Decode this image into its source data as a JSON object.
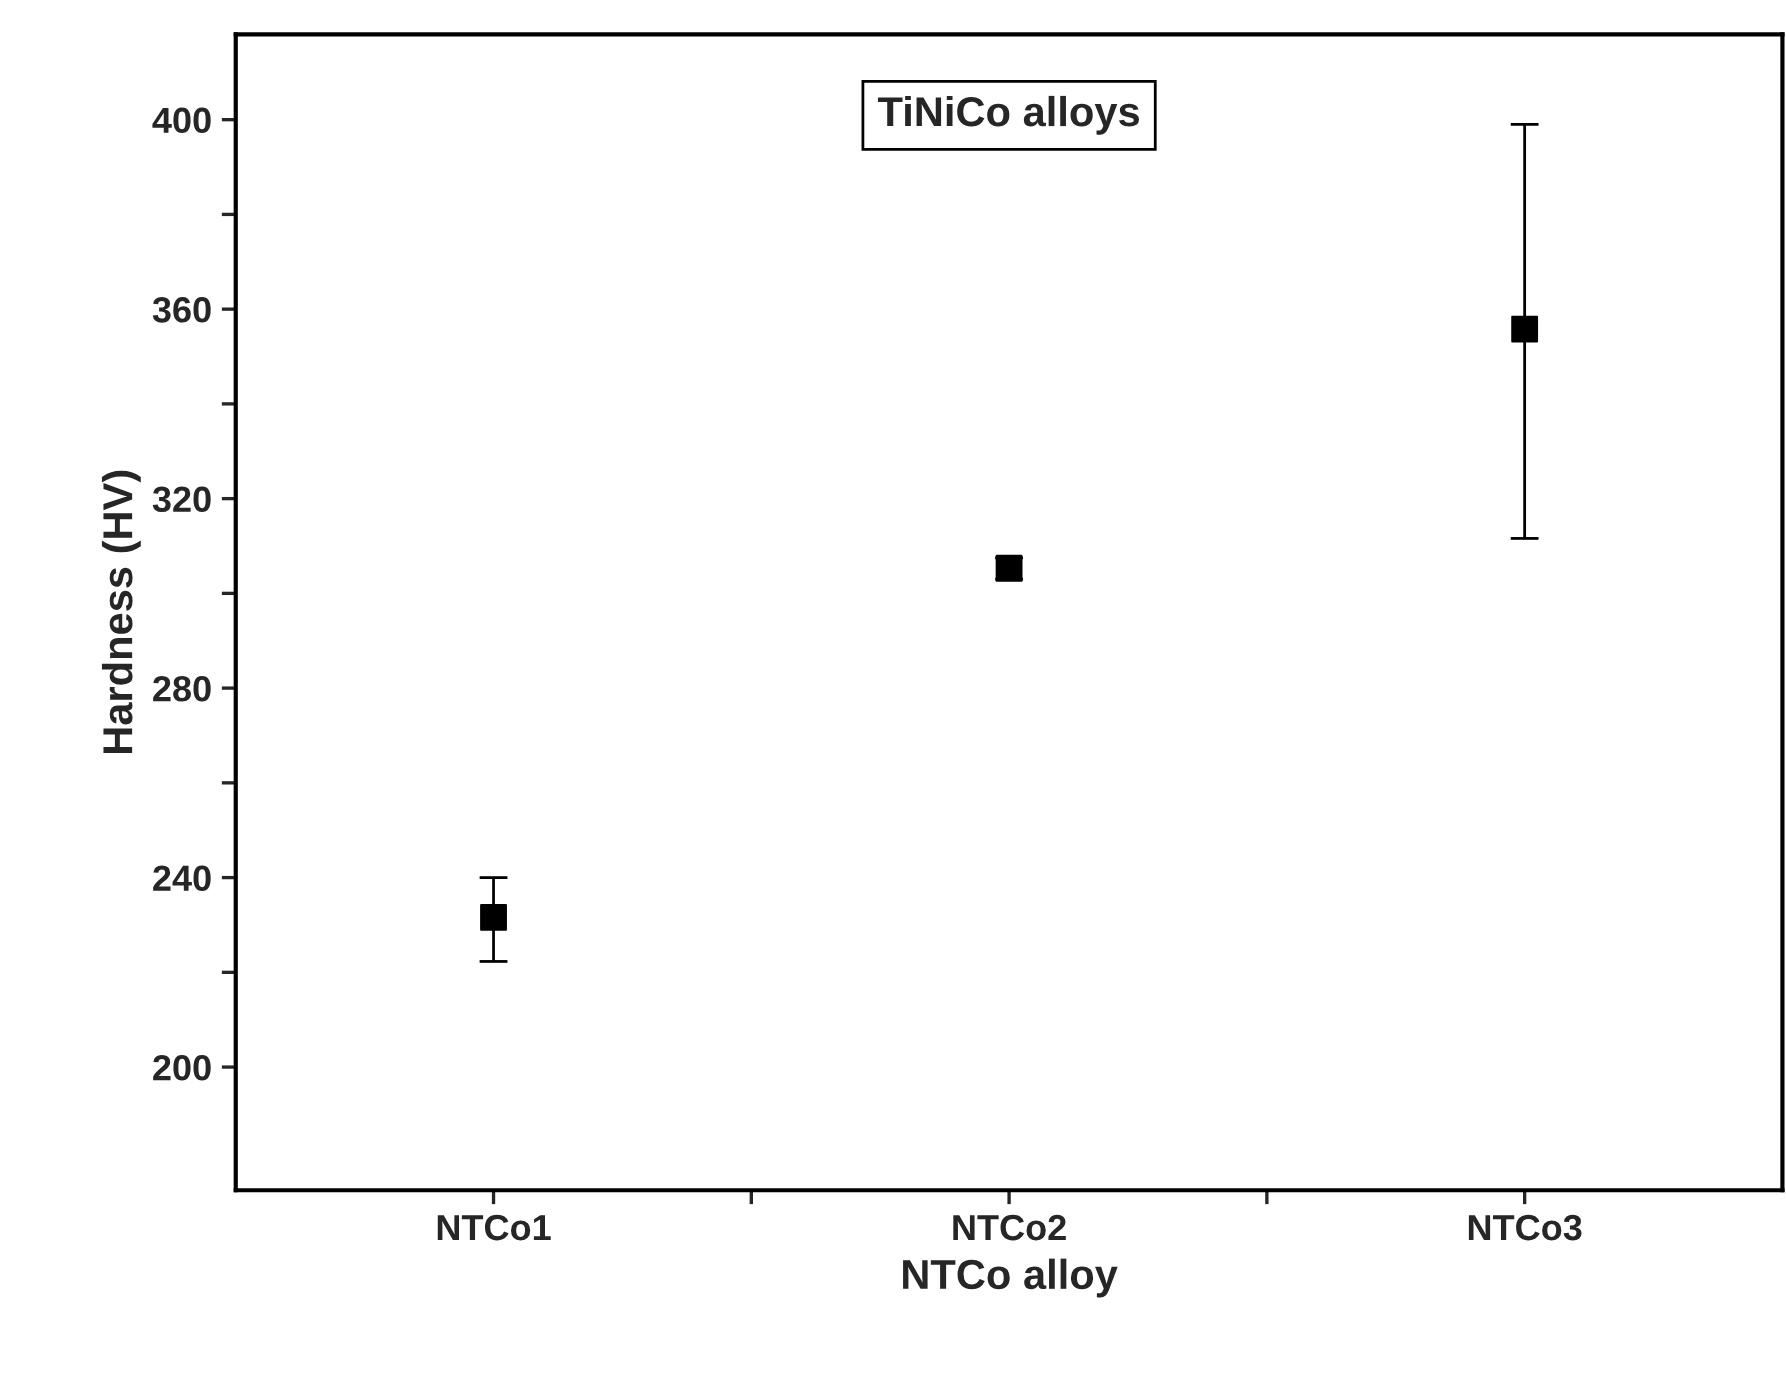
{
  "chart_data": {
    "type": "scatter",
    "xlabel": "NTCo alloy",
    "ylabel": "Hardness (HV)",
    "categories": [
      "NTCo1",
      "NTCo2",
      "NTCo3"
    ],
    "series": [
      {
        "color": "#000000",
        "values": [
          231.6,
          305.3,
          355.8
        ],
        "errors": [
          [
            222.3,
            240
          ],
          [
            303,
            307.5
          ],
          [
            311.6,
            399
          ]
        ]
      }
    ],
    "ylim": [
      174,
      418
    ],
    "yticks": [
      200,
      {
        "value": 220,
        "label": null
      },
      240,
      {
        "value": 260,
        "label": null
      },
      280,
      {
        "value": 300,
        "label": null
      },
      320,
      {
        "value": 340,
        "label": null
      },
      360,
      {
        "value": 380,
        "label": null
      },
      400
    ],
    "annotations": [
      "TiNiCo alloys"
    ],
    "marker": "square",
    "grid": false,
    "legend": false
  }
}
